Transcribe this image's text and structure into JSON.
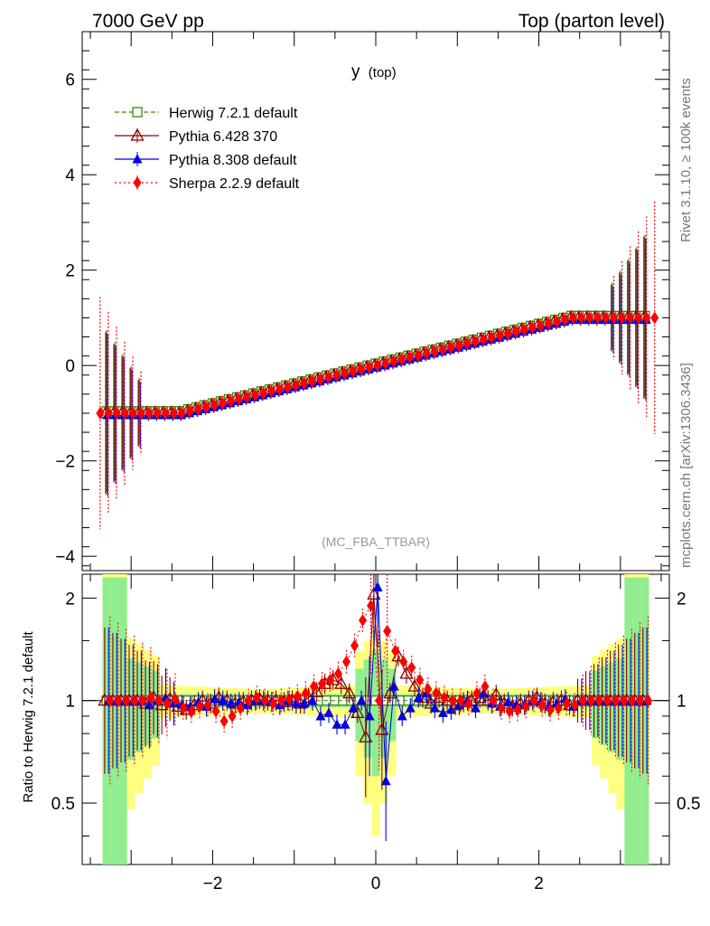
{
  "header": {
    "left": "7000 GeV pp",
    "right": "Top (parton level)"
  },
  "plot_label": {
    "main": "y",
    "sub": "(top)"
  },
  "watermark": "(MC_FBA_TTBAR)",
  "side_text": {
    "top": "Rivet 3.1.10, ≥ 100k events",
    "bottom": "mcplots.cern.ch [arXiv:1306.3436]"
  },
  "ratio_ylabel": "Ratio to Herwig 7.2.1 default",
  "colors": {
    "herwig": "#3a8a00",
    "pythia6": "#8b0000",
    "pythia8": "#0000dd",
    "sherpa": "#ff0000",
    "band_yellow": "#ffff80",
    "band_green": "#90ee90"
  },
  "chart_data": [
    {
      "type": "line",
      "panel": "main",
      "title": "y (top)",
      "xlim": [
        -3.6,
        3.6
      ],
      "ylim": [
        -4.3,
        7.0
      ],
      "yticks": [
        -4,
        -2,
        0,
        2,
        4,
        6
      ],
      "ytick_labels": [
        "−4",
        "−2",
        "0",
        "2",
        "4",
        "6"
      ],
      "legend_placement": "top-left",
      "series": [
        {
          "key": "herwig",
          "name": "Herwig 7.2.1 default",
          "marker": "open-square",
          "dash": "dashed"
        },
        {
          "key": "pythia6",
          "name": "Pythia 6.428 370",
          "marker": "open-triangle",
          "dash": "solid"
        },
        {
          "key": "pythia8",
          "name": "Pythia 8.308 default",
          "marker": "filled-triangle",
          "dash": "solid"
        },
        {
          "key": "sherpa",
          "name": "Sherpa 2.2.9 default",
          "marker": "filled-diamond",
          "dash": "dotted"
        }
      ],
      "x": [
        -3.4,
        -3.3,
        -3.2,
        -3.1,
        -3.0,
        -2.9,
        -2.8,
        -2.7,
        -2.6,
        -2.5,
        -2.4,
        -2.3,
        -2.2,
        -2.1,
        -2.0,
        -1.9,
        -1.8,
        -1.7,
        -1.6,
        -1.5,
        -1.4,
        -1.3,
        -1.2,
        -1.1,
        -1.0,
        -0.9,
        -0.8,
        -0.7,
        -0.6,
        -0.5,
        -0.4,
        -0.3,
        -0.2,
        -0.1,
        0.0,
        0.1,
        0.2,
        0.3,
        0.4,
        0.5,
        0.6,
        0.7,
        0.8,
        0.9,
        1.0,
        1.1,
        1.2,
        1.3,
        1.4,
        1.5,
        1.6,
        1.7,
        1.8,
        1.9,
        2.0,
        2.1,
        2.2,
        2.3,
        2.4,
        2.5,
        2.6,
        2.7,
        2.8,
        2.9,
        3.0,
        3.1,
        3.2,
        3.3,
        3.4
      ],
      "values_note": "mean y(top) per bin follows y = x/2.4 clamped to [-1, 1]"
    },
    {
      "type": "line",
      "panel": "ratio",
      "ylabel": "Ratio to Herwig 7.2.1 default",
      "xlim": [
        -3.6,
        3.6
      ],
      "ylim": [
        0.33,
        2.35
      ],
      "log_y": true,
      "yticks": [
        0.5,
        1,
        2
      ],
      "ytick_labels": [
        "0.5",
        "1",
        "2"
      ],
      "xticks": [
        -2,
        0,
        2
      ],
      "xtick_labels": [
        "−2",
        "0",
        "2"
      ],
      "x": [
        -3.3,
        -3.2,
        -3.1,
        -3.0,
        -2.9,
        -2.8,
        -2.7,
        -2.6,
        -2.5,
        -2.4,
        -2.3,
        -2.2,
        -2.1,
        -2.0,
        -1.9,
        -1.8,
        -1.7,
        -1.6,
        -1.5,
        -1.4,
        -1.3,
        -1.2,
        -1.1,
        -1.0,
        -0.9,
        -0.8,
        -0.7,
        -0.6,
        -0.5,
        -0.4,
        -0.3,
        -0.2,
        -0.1,
        0.0,
        0.1,
        0.2,
        0.3,
        0.4,
        0.5,
        0.6,
        0.7,
        0.8,
        0.9,
        1.0,
        1.1,
        1.2,
        1.3,
        1.4,
        1.5,
        1.6,
        1.7,
        1.8,
        1.9,
        2.0,
        2.1,
        2.2,
        2.3,
        2.4,
        2.5,
        2.6,
        2.7,
        2.8,
        2.9,
        3.0,
        3.1,
        3.2,
        3.3
      ],
      "series": [
        {
          "key": "herwig",
          "name": "Herwig 7.2.1 default",
          "values": [
            1,
            1,
            1,
            1,
            1,
            1,
            1,
            1,
            1,
            1,
            1,
            1,
            1,
            1,
            1,
            1,
            1,
            1,
            1,
            1,
            1,
            1,
            1,
            1,
            1,
            1,
            1,
            1,
            1,
            1,
            1,
            1,
            1,
            1,
            1,
            1,
            1,
            1,
            1,
            1,
            1,
            1,
            1,
            1,
            1,
            1,
            1,
            1,
            1,
            1,
            1,
            1,
            1,
            1,
            1,
            1,
            1,
            1,
            1,
            1,
            1,
            1,
            1,
            1,
            1,
            1,
            1
          ]
        },
        {
          "key": "pythia6",
          "name": "Pythia 6.428 370",
          "values": [
            1,
            1,
            1,
            1,
            1,
            0.98,
            1.02,
            0.97,
            1.01,
            0.96,
            0.94,
            0.97,
            1.0,
            0.98,
            1.02,
            1.0,
            0.98,
            0.99,
            1.0,
            1.01,
            1.0,
            1.0,
            0.99,
            1.0,
            0.98,
            1.02,
            1.06,
            1.12,
            1.15,
            1.12,
            1.05,
            0.92,
            0.78,
            2.05,
            0.82,
            1.05,
            1.35,
            1.2,
            1.1,
            1.02,
            0.98,
            1.02,
            1.0,
            0.97,
            0.99,
            1.0,
            1.02,
            1.0,
            1.04,
            0.98,
            0.96,
            0.98,
            1.0,
            1.02,
            0.98,
            0.99,
            1.0,
            0.97,
            1.0,
            1.0,
            1.0,
            1.0,
            1.0,
            1.0,
            1.0,
            1.0,
            1.0
          ]
        },
        {
          "key": "pythia8",
          "name": "Pythia 8.308 default",
          "values": [
            1,
            1,
            1,
            1,
            1,
            0.97,
            1.0,
            1.02,
            0.98,
            0.97,
            0.96,
            0.99,
            0.96,
            1.01,
            1.0,
            0.98,
            0.99,
            0.97,
            1.0,
            1.0,
            0.99,
            0.97,
            1.0,
            0.98,
            0.98,
            1.0,
            0.9,
            0.92,
            0.85,
            0.85,
            0.95,
            1.0,
            0.9,
            2.15,
            0.58,
            1.1,
            0.9,
            0.95,
            1.02,
            1.05,
            0.95,
            0.92,
            0.94,
            0.97,
            1.0,
            0.95,
            1.05,
            0.98,
            0.96,
            0.99,
            0.97,
            0.97,
            1.0,
            0.99,
            0.96,
            0.98,
            1.01,
            0.96,
            1.0,
            1.0,
            1.0,
            1.0,
            1.0,
            1.0,
            1.0,
            1.0,
            1.0
          ]
        },
        {
          "key": "sherpa",
          "name": "Sherpa 2.2.9 default",
          "values": [
            1,
            1,
            1,
            1,
            1,
            1.02,
            1.0,
            0.98,
            1.01,
            0.95,
            0.93,
            0.96,
            0.97,
            0.93,
            0.87,
            0.9,
            0.95,
            1.0,
            1.02,
            1.0,
            0.98,
            1.0,
            1.01,
            1.03,
            1.05,
            1.1,
            1.12,
            1.15,
            1.2,
            1.3,
            1.45,
            1.72,
            1.9,
            1.0,
            1.6,
            1.4,
            1.3,
            1.25,
            1.15,
            1.08,
            1.05,
            1.02,
            1.0,
            1.0,
            0.98,
            1.05,
            1.1,
            1.0,
            0.95,
            0.93,
            0.94,
            0.96,
            1.0,
            0.97,
            0.94,
            0.95,
            0.98,
            0.97,
            1.0,
            1.0,
            1.0,
            1.0,
            1.0,
            1.0,
            1.0,
            1.0,
            1.0
          ]
        }
      ]
    }
  ]
}
